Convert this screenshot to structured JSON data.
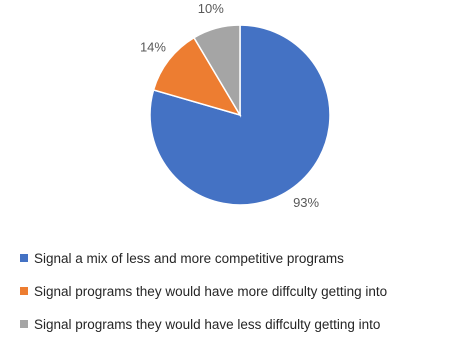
{
  "chart_data": {
    "type": "pie",
    "title": "",
    "slices": [
      {
        "label": "Signal a mix of less and more competitive programs",
        "value": 93,
        "value_label": "93%",
        "color": "#4472C4"
      },
      {
        "label": "Signal programs they would have more diffculty getting into",
        "value": 14,
        "value_label": "14%",
        "color": "#ED7D31"
      },
      {
        "label": "Signal programs they would have less diffculty getting into",
        "value": 10,
        "value_label": "10%",
        "color": "#A5A5A5"
      }
    ],
    "start_angle_deg": 0,
    "direction": "clockwise",
    "legend_position": "bottom"
  }
}
